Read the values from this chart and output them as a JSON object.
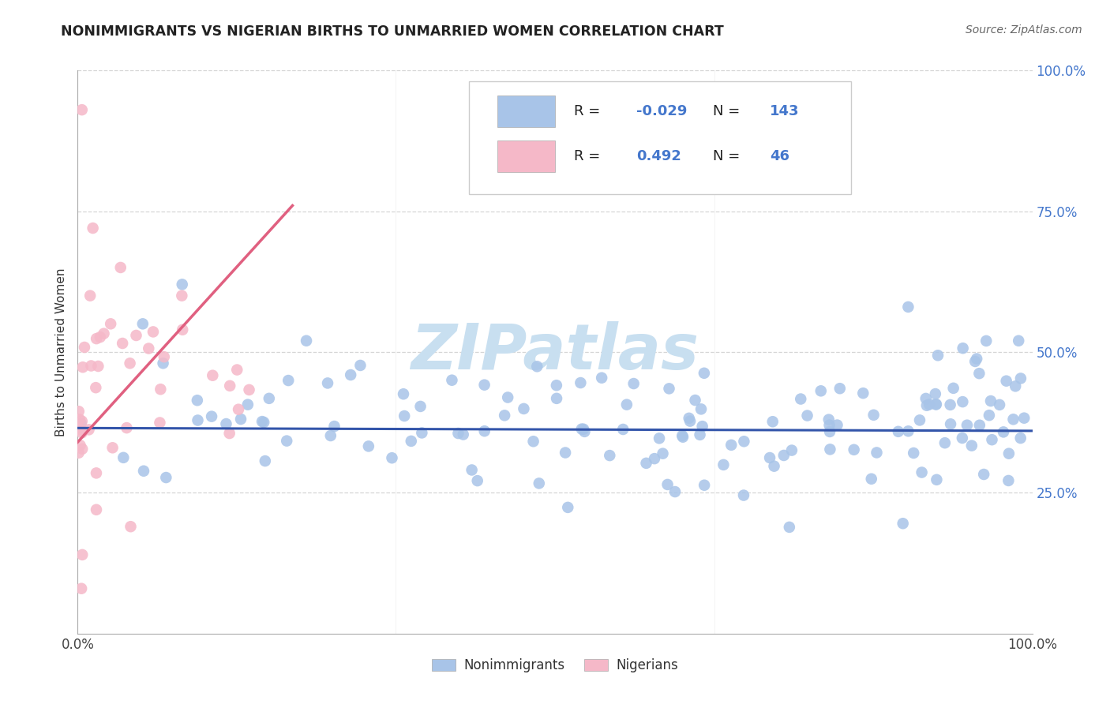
{
  "title": "NONIMMIGRANTS VS NIGERIAN BIRTHS TO UNMARRIED WOMEN CORRELATION CHART",
  "source": "Source: ZipAtlas.com",
  "ylabel": "Births to Unmarried Women",
  "r_blue": "-0.029",
  "n_blue": "143",
  "r_pink": "0.492",
  "n_pink": "46",
  "blue_dot_color": "#a8c4e8",
  "pink_dot_color": "#f5b8c8",
  "blue_line_color": "#3355aa",
  "pink_line_color": "#e06080",
  "tick_color": "#4477cc",
  "watermark_color": "#c8dff0",
  "grid_color": "#cccccc",
  "title_color": "#222222",
  "source_color": "#666666",
  "legend_border_color": "#cccccc"
}
